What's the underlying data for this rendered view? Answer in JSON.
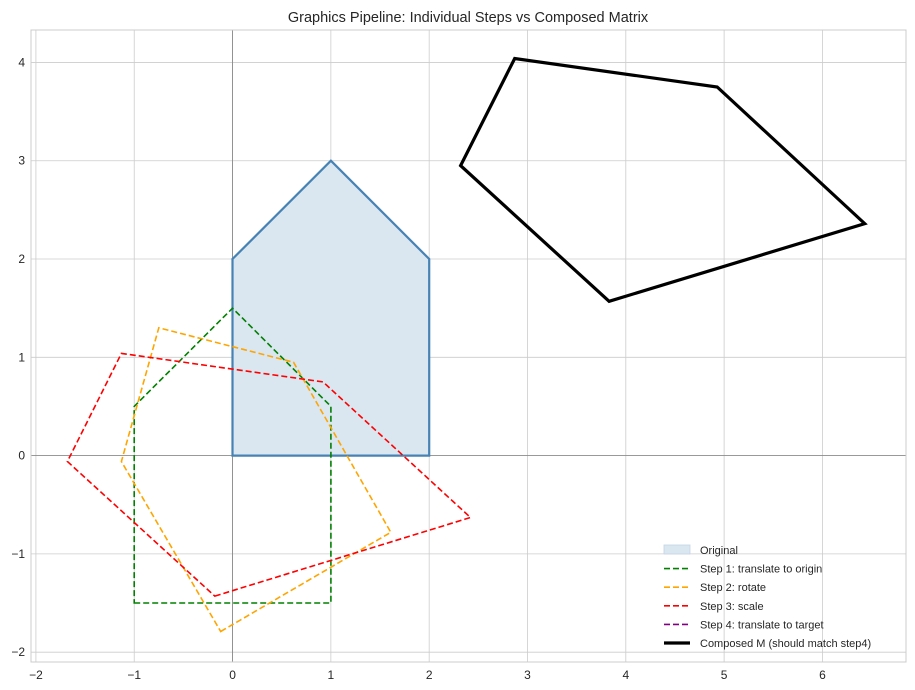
{
  "chart_data": {
    "type": "line",
    "title": "Graphics Pipeline: Individual Steps vs Composed Matrix",
    "xlabel": "",
    "ylabel": "",
    "xlim": [
      -2.05,
      6.85
    ],
    "ylim": [
      -2.1,
      4.33
    ],
    "x_ticks": [
      "-2",
      "-1",
      "0",
      "1",
      "2",
      "3",
      "4",
      "5",
      "6"
    ],
    "y_ticks": [
      "-2",
      "-1",
      "0",
      "1",
      "2",
      "3",
      "4"
    ],
    "grid": true,
    "legend_position": "lower right",
    "series": [
      {
        "name": "Original",
        "style": "filled-polygon",
        "color": "#4682b4",
        "fill": "#dae6f0",
        "points": [
          [
            0,
            0
          ],
          [
            2,
            0
          ],
          [
            2,
            2
          ],
          [
            1,
            3
          ],
          [
            0,
            2
          ]
        ]
      },
      {
        "name": "Step 1: translate to origin",
        "style": "dashed",
        "color": "#008000",
        "points": [
          [
            -1,
            -1.5
          ],
          [
            1,
            -1.5
          ],
          [
            1,
            0.5
          ],
          [
            0,
            1.5
          ],
          [
            -1,
            0.5
          ]
        ]
      },
      {
        "name": "Step 2: rotate",
        "style": "dashed",
        "color": "#ffa500",
        "points": [
          [
            -0.12,
            -1.79
          ],
          [
            1.61,
            -0.78
          ],
          [
            0.62,
            0.95
          ],
          [
            -0.75,
            1.3
          ],
          [
            -1.13,
            -0.06
          ]
        ]
      },
      {
        "name": "Step 3: scale",
        "style": "dashed",
        "color": "#ff0000",
        "points": [
          [
            -0.18,
            -1.43
          ],
          [
            2.42,
            -0.63
          ],
          [
            0.92,
            0.75
          ],
          [
            -1.13,
            1.04
          ],
          [
            -1.68,
            -0.06
          ]
        ]
      },
      {
        "name": "Step 4: translate to target",
        "style": "dashed",
        "color": "#800080",
        "points": [
          [
            3.83,
            1.57
          ],
          [
            6.43,
            2.36
          ],
          [
            4.93,
            3.75
          ],
          [
            2.87,
            4.04
          ],
          [
            2.32,
            2.95
          ]
        ]
      },
      {
        "name": "Composed M (should match step4)",
        "style": "solid-thick",
        "color": "#000000",
        "points": [
          [
            3.83,
            1.57
          ],
          [
            6.43,
            2.36
          ],
          [
            4.93,
            3.75
          ],
          [
            2.87,
            4.04
          ],
          [
            2.32,
            2.95
          ]
        ]
      }
    ]
  }
}
